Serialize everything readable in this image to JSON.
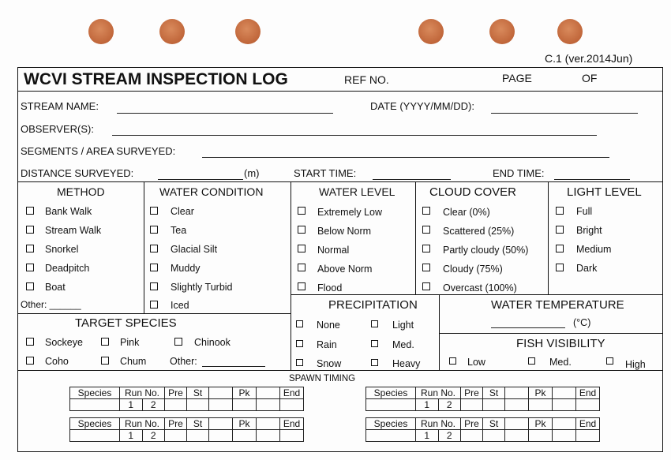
{
  "version": "C.1 (ver.2014Jun)",
  "header": {
    "title": "WCVI STREAM INSPECTION LOG",
    "ref_no": "REF NO.",
    "page": "PAGE",
    "of": "OF"
  },
  "fields": {
    "stream_name": "STREAM NAME:",
    "date": "DATE (YYYY/MM/DD):",
    "observers": "OBSERVER(S):",
    "segments": "SEGMENTS / AREA SURVEYED:",
    "distance": "DISTANCE SURVEYED:",
    "distance_unit": "(m)",
    "start_time": "START TIME:",
    "end_time": "END TIME:"
  },
  "method": {
    "title": "METHOD",
    "options": [
      "Bank Walk",
      "Stream Walk",
      "Snorkel",
      "Deadpitch",
      "Boat"
    ],
    "other": "Other: ______"
  },
  "water_condition": {
    "title": "WATER CONDITION",
    "options": [
      "Clear",
      "Tea",
      "Glacial Silt",
      "Muddy",
      "Slightly Turbid",
      "Iced"
    ]
  },
  "water_level": {
    "title": "WATER LEVEL",
    "options": [
      "Extremely Low",
      "Below Norm",
      "Normal",
      "Above Norm",
      "Flood"
    ]
  },
  "cloud_cover": {
    "title": "CLOUD COVER",
    "options": [
      "Clear (0%)",
      "Scattered (25%)",
      "Partly cloudy (50%)",
      "Cloudy (75%)",
      "Overcast (100%)"
    ]
  },
  "light_level": {
    "title": "LIGHT LEVEL",
    "options": [
      "Full",
      "Bright",
      "Medium",
      "Dark"
    ]
  },
  "precipitation": {
    "title": "PRECIPITATION",
    "options": [
      "None",
      "Light",
      "Rain",
      "Med.",
      "Snow",
      "Heavy"
    ]
  },
  "water_temperature": {
    "title": "WATER TEMPERATURE",
    "unit": "(°C)"
  },
  "fish_visibility": {
    "title": "FISH VISIBILITY",
    "options": [
      "Low",
      "Med.",
      "High"
    ]
  },
  "target_species": {
    "title": "TARGET SPECIES",
    "options": [
      "Sockeye",
      "Pink",
      "Chinook",
      "Coho",
      "Chum"
    ],
    "other": "Other:"
  },
  "spawn_timing": {
    "title": "SPAWN TIMING",
    "headers": [
      "Species",
      "Run No.",
      "Pre",
      "St",
      "Pk",
      "End"
    ],
    "run_numbers": [
      "1",
      "2"
    ]
  }
}
